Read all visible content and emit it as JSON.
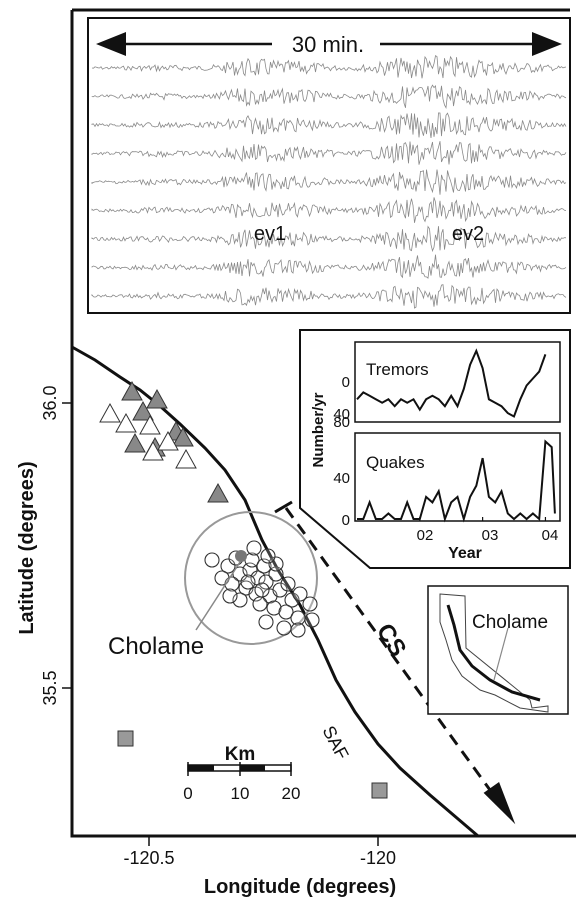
{
  "seismogram_panel": {
    "duration_label": "30 min.",
    "event_labels": [
      "ev1",
      "ev2"
    ],
    "trace_count": 9
  },
  "map": {
    "xlabel": "Longitude (degrees)",
    "ylabel": "Latitude (degrees)",
    "x_ticks": [
      "-120.5",
      "-120"
    ],
    "y_ticks": [
      "36.0",
      "35.5"
    ],
    "fault_label": "SAF",
    "arrow_label": "CS",
    "place_label": "Cholame",
    "scale_bar": {
      "unit": "Km",
      "ticks": [
        "0",
        "10",
        "20"
      ]
    },
    "colors": {
      "filled_triangle": "#888888",
      "open_triangle": "#ffffff",
      "station_square": "#999999",
      "circle_outline": "#999999"
    }
  },
  "inset_chart": {
    "ylabel": "Number/yr",
    "xlabel": "Year",
    "x_ticks": [
      "02",
      "03",
      "04"
    ],
    "panels": [
      {
        "name": "Tremors",
        "y_ticks": [
          "0",
          "40",
          "80"
        ]
      },
      {
        "name": "Quakes",
        "y_ticks": [
          "0",
          "40"
        ]
      }
    ]
  },
  "california_inset": {
    "label": "Cholame"
  },
  "chart_data": [
    {
      "type": "line",
      "title": "Tremors",
      "xlabel": "Year",
      "ylabel": "Number/yr",
      "xlim": [
        2001,
        2004.2
      ],
      "ylim": [
        0,
        110
      ],
      "x": [
        2001.0,
        2001.1,
        2001.2,
        2001.3,
        2001.4,
        2001.5,
        2001.6,
        2001.7,
        2001.8,
        2001.9,
        2002.0,
        2002.1,
        2002.2,
        2002.3,
        2002.4,
        2002.5,
        2002.6,
        2002.7,
        2002.8,
        2002.9,
        2003.0,
        2003.1,
        2003.2,
        2003.3,
        2003.4,
        2003.5,
        2003.6,
        2003.7,
        2003.8,
        2003.9,
        2004.0
      ],
      "values": [
        30,
        40,
        35,
        30,
        25,
        30,
        20,
        30,
        25,
        30,
        15,
        30,
        35,
        30,
        20,
        35,
        20,
        45,
        80,
        100,
        75,
        30,
        25,
        20,
        10,
        5,
        30,
        50,
        60,
        70,
        95
      ]
    },
    {
      "type": "line",
      "title": "Quakes",
      "xlabel": "Year",
      "ylabel": "Number/yr",
      "xlim": [
        2001,
        2004.2
      ],
      "ylim": [
        0,
        75
      ],
      "x": [
        2001.0,
        2001.1,
        2001.2,
        2001.3,
        2001.4,
        2001.5,
        2001.6,
        2001.7,
        2001.8,
        2001.9,
        2002.0,
        2002.1,
        2002.2,
        2002.3,
        2002.4,
        2002.5,
        2002.6,
        2002.7,
        2002.8,
        2002.9,
        2003.0,
        2003.1,
        2003.2,
        2003.3,
        2003.4,
        2003.5,
        2003.6,
        2003.7,
        2003.8,
        2003.9,
        2004.0,
        2004.1,
        2004.15
      ],
      "values": [
        0,
        0,
        15,
        0,
        0,
        5,
        0,
        0,
        15,
        0,
        0,
        20,
        15,
        25,
        0,
        15,
        20,
        0,
        20,
        30,
        55,
        20,
        15,
        25,
        5,
        0,
        5,
        0,
        5,
        0,
        70,
        65,
        5
      ]
    }
  ]
}
